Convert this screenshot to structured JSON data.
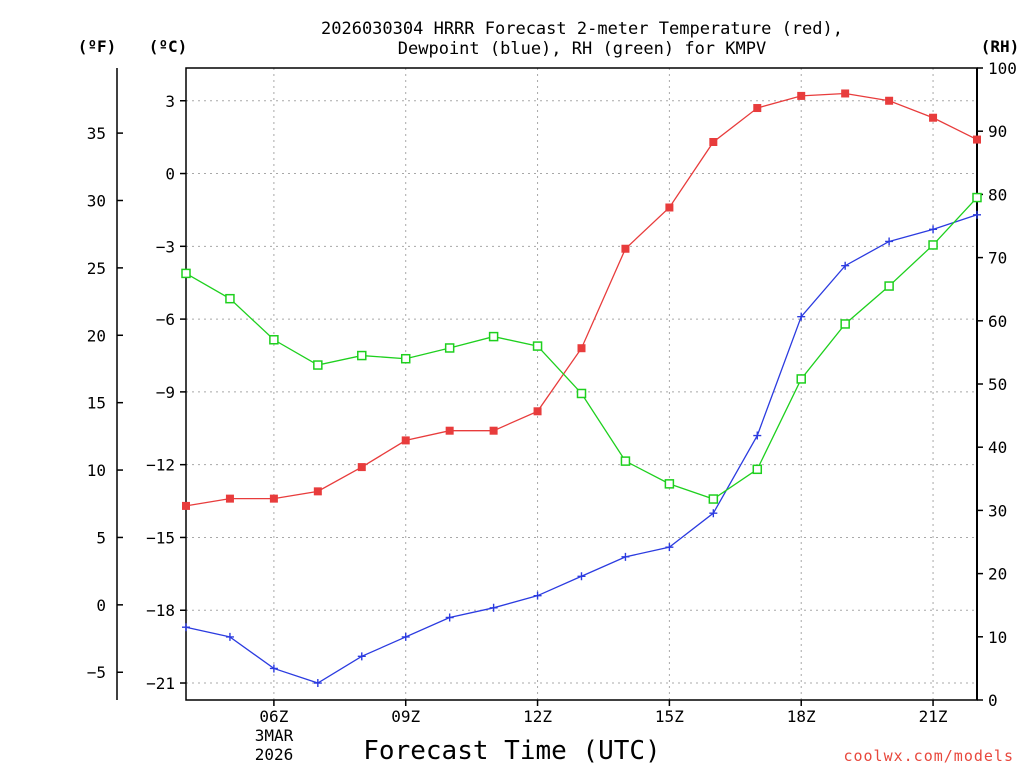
{
  "chart_data": {
    "type": "line",
    "title_lines": [
      "2026030304 HRRR Forecast 2-meter Temperature (red),",
      "Dewpoint (blue), RH (green) for KMPV"
    ],
    "xlabel": "Forecast Time (UTC)",
    "credit": "coolwx.com/models",
    "x_date_label": [
      "3MAR",
      "2026"
    ],
    "x_range_hours": [
      4,
      22
    ],
    "x_ticks": [
      {
        "hour": 6,
        "label": "06Z"
      },
      {
        "hour": 9,
        "label": "09Z"
      },
      {
        "hour": 12,
        "label": "12Z"
      },
      {
        "hour": 15,
        "label": "15Z"
      },
      {
        "hour": 18,
        "label": "18Z"
      },
      {
        "hour": 21,
        "label": "21Z"
      }
    ],
    "y_left_c": {
      "unit": "(ºC)",
      "range": [
        -21.7,
        4.35
      ],
      "ticks": [
        3,
        0,
        -3,
        -6,
        -9,
        -12,
        -15,
        -18,
        -21
      ],
      "tick_labels": [
        "3",
        "0",
        "−3",
        "−6",
        "−9",
        "−12",
        "−15",
        "−18",
        "−21"
      ]
    },
    "y_left_f": {
      "unit": "(ºF)",
      "ticks": [
        35,
        30,
        25,
        20,
        15,
        10,
        5,
        0,
        -5
      ],
      "tick_labels": [
        "35",
        "30",
        "25",
        "20",
        "15",
        "10",
        "5",
        "0",
        "−5"
      ]
    },
    "y_right_rh": {
      "unit": "(RH)",
      "range": [
        0,
        100
      ],
      "ticks": [
        100,
        90,
        80,
        70,
        60,
        50,
        40,
        30,
        20,
        10,
        0
      ],
      "tick_labels": [
        "100",
        "90",
        "80",
        "70",
        "60",
        "50",
        "40",
        "30",
        "20",
        "10",
        "0"
      ]
    },
    "x_hours": [
      4,
      5,
      6,
      7,
      8,
      9,
      10,
      11,
      12,
      13,
      14,
      15,
      16,
      17,
      18,
      19,
      20,
      21,
      22
    ],
    "series": [
      {
        "name": "2-meter Temperature",
        "axis": "celsius",
        "color": "#e83c3c",
        "marker": "filled-square",
        "values": [
          -13.7,
          -13.4,
          -13.4,
          -13.1,
          -12.1,
          -11.0,
          -10.6,
          -10.6,
          -9.8,
          -7.2,
          -3.1,
          -1.4,
          1.3,
          2.7,
          3.2,
          3.3,
          3.0,
          2.3,
          1.4
        ]
      },
      {
        "name": "Dewpoint",
        "axis": "celsius",
        "color": "#2b3be0",
        "marker": "plus",
        "values": [
          -18.7,
          -19.1,
          -20.4,
          -21.0,
          -19.9,
          -19.1,
          -18.3,
          -17.9,
          -17.4,
          -16.6,
          -15.8,
          -15.4,
          -14.0,
          -10.8,
          -5.9,
          -3.8,
          -2.8,
          -2.3,
          -1.7
        ]
      },
      {
        "name": "Relative Humidity",
        "axis": "rh",
        "color": "#1ed01e",
        "marker": "open-square",
        "values": [
          67.5,
          63.5,
          57.0,
          53.0,
          54.5,
          54.0,
          55.7,
          57.5,
          56.0,
          48.5,
          37.8,
          34.2,
          31.8,
          36.5,
          50.8,
          59.5,
          65.5,
          72.0,
          79.5
        ]
      }
    ]
  }
}
